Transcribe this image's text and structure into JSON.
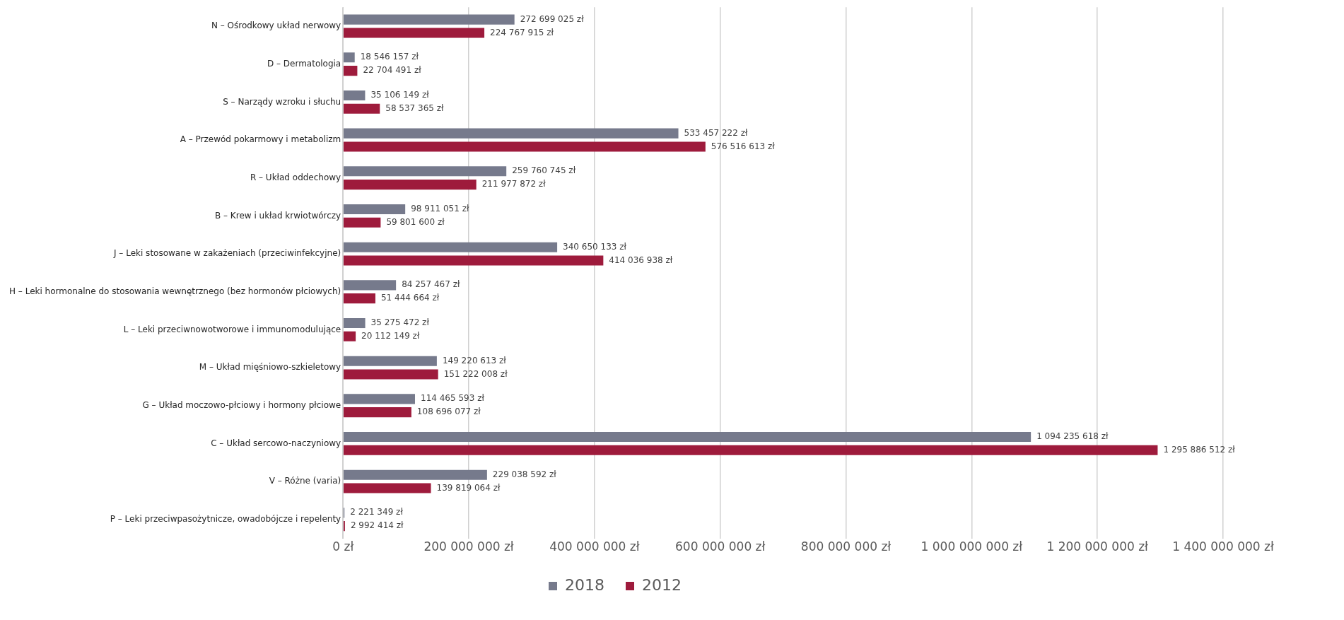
{
  "chart_data": {
    "type": "bar",
    "orientation": "horizontal",
    "categories": [
      "N – Ośrodkowy układ nerwowy",
      "D – Dermatologia",
      "S – Narządy wzroku i słuchu",
      "A – Przewód pokarmowy i metabolizm",
      "R – Układ oddechowy",
      "B – Krew i układ krwiotwórczy",
      "J – Leki stosowane w zakażeniach (przeciwinfekcyjne)",
      "H – Leki hormonalne do stosowania wewnętrznego (bez hormonów płciowych)",
      "L – Leki przeciwnowotworowe i immunomodulujące",
      "M – Układ mięśniowo-szkieletowy",
      "G – Układ moczowo-płciowy i hormony płciowe",
      "C – Układ sercowo-naczyniowy",
      "V – Różne (varia)",
      "P – Leki przeciwpasożytnicze, owadobójcze i repelenty"
    ],
    "series": [
      {
        "name": "2018",
        "color": "#767a8c",
        "values": [
          272699025,
          18546157,
          35106149,
          533457222,
          259760745,
          98911051,
          340650133,
          84257467,
          35275472,
          149220613,
          114465593,
          1094235618,
          229038592,
          2221349
        ],
        "value_labels": [
          "272 699 025 zł",
          "18 546 157 zł",
          "35 106 149 zł",
          "533 457 222 zł",
          "259 760 745 zł",
          "98 911 051 zł",
          "340 650 133 zł",
          "84 257 467 zł",
          "35 275 472 zł",
          "149 220 613 zł",
          "114 465 593 zł",
          "1 094 235 618 zł",
          "229 038 592 zł",
          "2 221 349 zł"
        ]
      },
      {
        "name": "2012",
        "color": "#9e1b3c",
        "values": [
          224767915,
          22704491,
          58537365,
          576516613,
          211977872,
          59801600,
          414036938,
          51444664,
          20112149,
          151222008,
          108696077,
          1295886512,
          139819064,
          2992414
        ],
        "value_labels": [
          "224 767 915 zł",
          "22 704 491 zł",
          "58 537 365 zł",
          "576 516 613 zł",
          "211 977 872 zł",
          "59 801 600 zł",
          "414 036 938 zł",
          "51 444 664 zł",
          "20 112 149 zł",
          "151 222 008 zł",
          "108 696 077 zł",
          "1 295 886 512 zł",
          "139 819 064 zł",
          "2 992 414 zł"
        ]
      }
    ],
    "xlim": [
      0,
      1400000000
    ],
    "xticks": [
      {
        "value": 0,
        "label": "0 zł"
      },
      {
        "value": 200000000,
        "label": "200 000 000 zł"
      },
      {
        "value": 400000000,
        "label": "400 000 000 zł"
      },
      {
        "value": 600000000,
        "label": "600 000 000 zł"
      },
      {
        "value": 800000000,
        "label": "800 000 000 zł"
      },
      {
        "value": 1000000000,
        "label": "1 000 000 000 zł"
      },
      {
        "value": 1200000000,
        "label": "1 200 000 000 zł"
      },
      {
        "value": 1400000000,
        "label": "1 400 000 000 zł"
      }
    ],
    "grid": "x",
    "legend": "bottom"
  }
}
